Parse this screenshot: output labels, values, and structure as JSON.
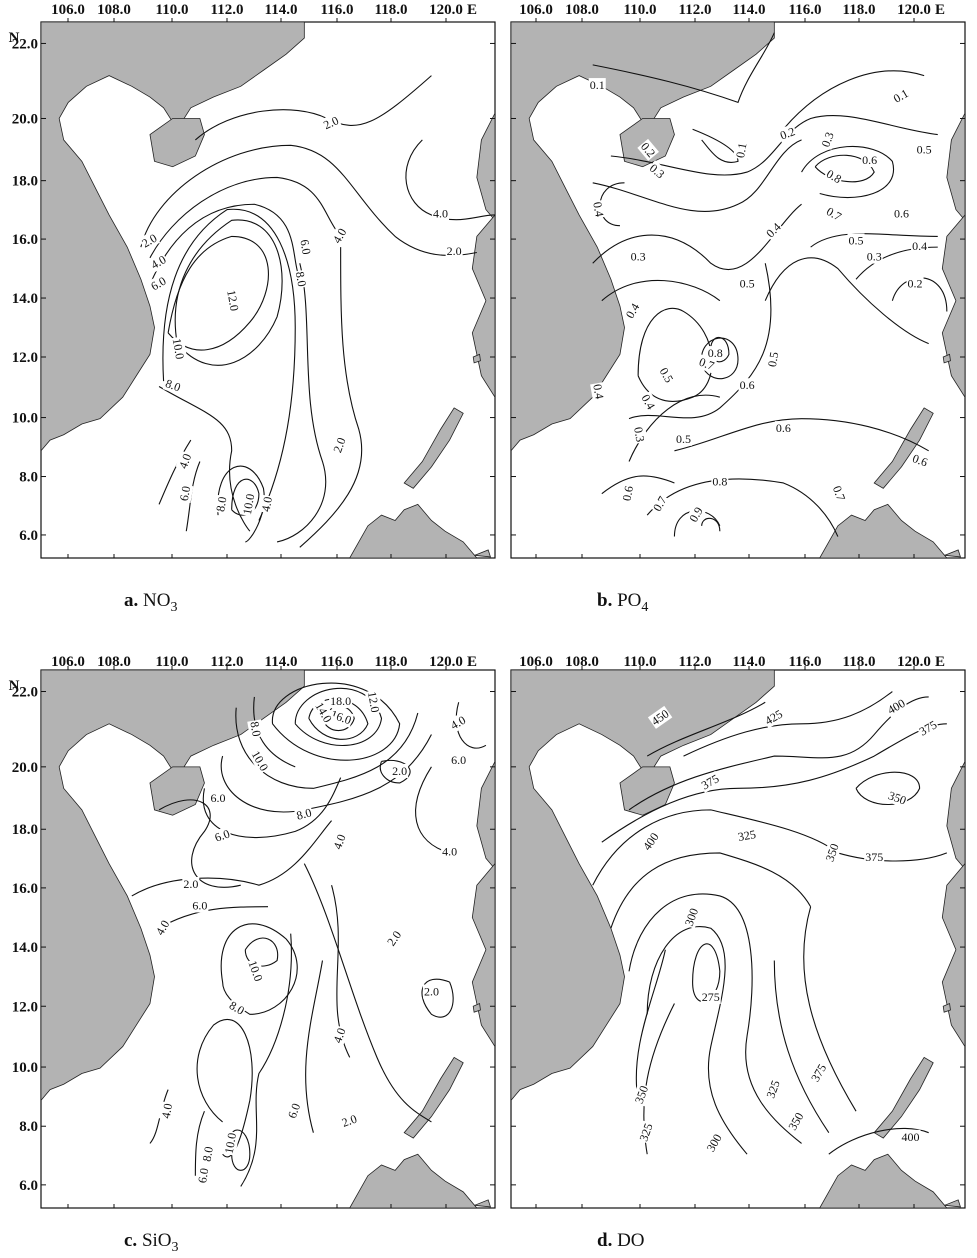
{
  "lon_labels": [
    "106.0",
    "108.0",
    "110.0",
    "112.0",
    "114.0",
    "116.0",
    "118.0",
    "120.0"
  ],
  "lat_labels": [
    "22.0",
    "20.0",
    "18.0",
    "16.0",
    "14.0",
    "12.0",
    "10.0",
    "8.0",
    "6.0"
  ],
  "lat_title": "N",
  "lon_suffix": "E",
  "panels": [
    {
      "letter": "a.",
      "variable": "NO",
      "subscript": "3",
      "contour_labels": [
        "2.0",
        "4.0",
        "2.0",
        "2.0",
        "4.0",
        "6.0",
        "6.0",
        "8.0",
        "4.0",
        "12.0",
        "10.0",
        "8.0",
        "4.0",
        "6.0",
        "8.0",
        "10.0",
        "4.0",
        "2.0"
      ]
    },
    {
      "letter": "b.",
      "variable": "PO",
      "subscript": "4",
      "contour_labels": [
        "0.1",
        "0.1",
        "0.1",
        "0.2",
        "0.2",
        "0.3",
        "0.3",
        "0.6",
        "0.5",
        "0.8",
        "0.7",
        "0.6",
        "0.4",
        "0.4",
        "0.5",
        "0.4",
        "0.3",
        "0.3",
        "0.2",
        "0.4",
        "0.5",
        "0.8",
        "0.7",
        "0.6",
        "0.5",
        "0.5",
        "0.4",
        "0.3",
        "0.6",
        "0.6",
        "0.5",
        "0.6",
        "0.7",
        "0.8",
        "0.9",
        "0.7",
        "0.4"
      ]
    },
    {
      "letter": "c.",
      "variable": "SiO",
      "subscript": "3",
      "contour_labels": [
        "18.0",
        "16.0",
        "14.0",
        "12.0",
        "8.0",
        "10.0",
        "4.0",
        "6.0",
        "2.0",
        "6.0",
        "8.0",
        "6.0",
        "4.0",
        "4.0",
        "2.0",
        "4.0",
        "6.0",
        "10.0",
        "8.0",
        "2.0",
        "2.0",
        "4.0",
        "6.0",
        "8.0",
        "10.0",
        "4.0",
        "6.0",
        "2.0"
      ]
    },
    {
      "letter": "d.",
      "variable": "DO",
      "subscript": "",
      "contour_labels": [
        "450",
        "425",
        "400",
        "375",
        "375",
        "350",
        "400",
        "325",
        "350",
        "375",
        "300",
        "275",
        "350",
        "325",
        "300",
        "325",
        "350",
        "375",
        "400"
      ]
    }
  ]
}
